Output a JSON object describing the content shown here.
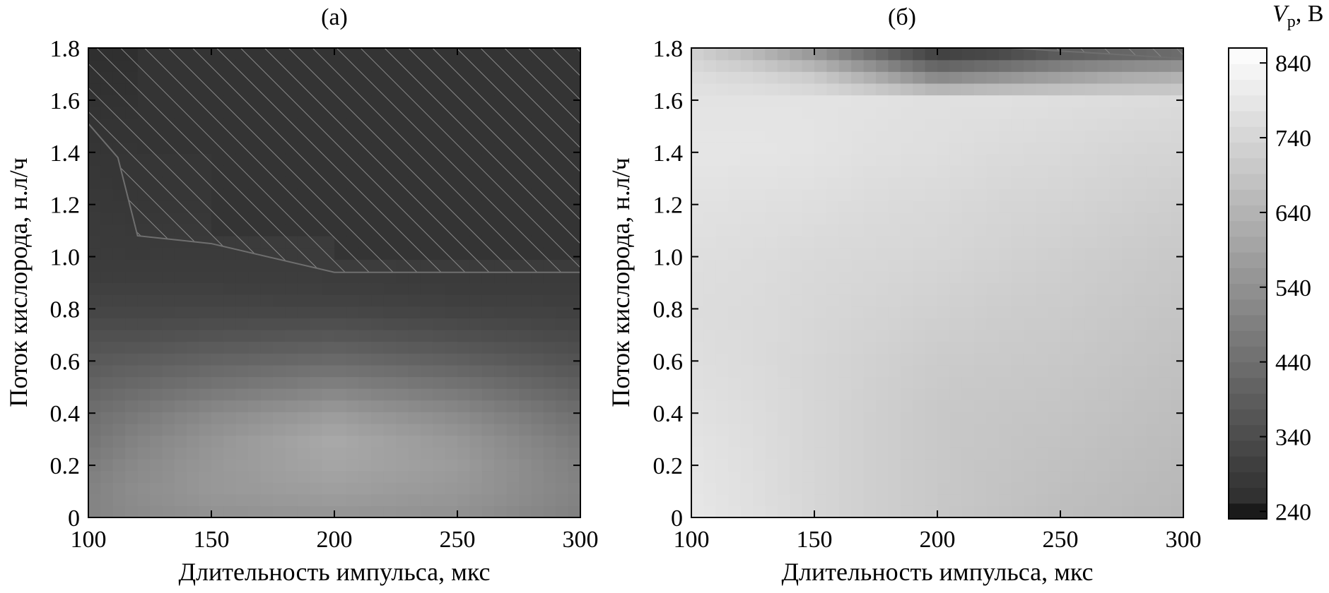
{
  "chart_data": [
    {
      "type": "heatmap",
      "panel_label": "(а)",
      "xlabel": "Длительность импульса, мкс",
      "ylabel": "Поток кислорода, н.л/ч",
      "xlim": [
        100,
        300
      ],
      "ylim": [
        0,
        1.8
      ],
      "x_ticks": [
        "100",
        "150",
        "200",
        "250",
        "300"
      ],
      "y_ticks": [
        "0",
        "0.2",
        "0.4",
        "0.6",
        "0.8",
        "1.0",
        "1.2",
        "1.4",
        "1.6",
        "1.8"
      ],
      "x": [
        100,
        120,
        150,
        200,
        250,
        300
      ],
      "y": [
        0,
        0.1,
        0.2,
        0.3,
        0.4,
        0.5,
        0.6,
        0.7,
        0.8,
        0.9,
        1.0,
        1.1,
        1.2,
        1.3,
        1.4,
        1.5
      ],
      "z": [
        [
          500,
          520,
          540,
          550,
          540,
          490
        ],
        [
          500,
          530,
          560,
          580,
          560,
          500
        ],
        [
          480,
          520,
          560,
          600,
          570,
          490
        ],
        [
          460,
          500,
          550,
          610,
          560,
          470
        ],
        [
          440,
          470,
          520,
          570,
          520,
          440
        ],
        [
          410,
          430,
          460,
          500,
          460,
          400
        ],
        [
          380,
          390,
          410,
          430,
          400,
          360
        ],
        [
          350,
          350,
          360,
          370,
          350,
          330
        ],
        [
          320,
          320,
          320,
          320,
          310,
          305
        ],
        [
          300,
          300,
          300,
          295,
          290,
          290
        ],
        [
          290,
          290,
          290,
          null,
          null,
          null
        ],
        [
          290,
          285,
          null,
          null,
          null,
          null
        ],
        [
          285,
          280,
          null,
          null,
          null,
          null
        ],
        [
          280,
          275,
          null,
          null,
          null,
          null
        ],
        [
          275,
          null,
          null,
          null,
          null,
          null
        ],
        [
          270,
          null,
          null,
          null,
          null,
          null
        ]
      ],
      "hatched_region_boundary": {
        "x": [
          100,
          112,
          120,
          150,
          200,
          300
        ],
        "y": [
          1.51,
          1.38,
          1.08,
          1.05,
          0.94,
          0.94
        ]
      }
    },
    {
      "type": "heatmap",
      "panel_label": "(б)",
      "xlabel": "Длительность импульса, мкс",
      "ylabel": "Поток кислорода, н.л/ч",
      "xlim": [
        100,
        300
      ],
      "ylim": [
        0,
        1.8
      ],
      "x_ticks": [
        "100",
        "150",
        "200",
        "250",
        "300"
      ],
      "y_ticks": [
        "0",
        "0.2",
        "0.4",
        "0.6",
        "0.8",
        "1.0",
        "1.2",
        "1.4",
        "1.6",
        "1.8"
      ],
      "x": [
        100,
        125,
        150,
        175,
        200,
        225,
        250,
        275,
        300
      ],
      "y": [
        0,
        0.2,
        0.4,
        0.6,
        0.8,
        1.0,
        1.2,
        1.4,
        1.6,
        1.7,
        1.8
      ],
      "z": [
        [
          790,
          770,
          740,
          720,
          700,
          685,
          670,
          660,
          650
        ],
        [
          785,
          765,
          740,
          720,
          700,
          690,
          680,
          670,
          660
        ],
        [
          775,
          760,
          740,
          720,
          700,
          695,
          690,
          680,
          670
        ],
        [
          765,
          755,
          740,
          725,
          710,
          705,
          700,
          690,
          680
        ],
        [
          760,
          755,
          745,
          735,
          725,
          715,
          710,
          700,
          690
        ],
        [
          765,
          760,
          750,
          745,
          740,
          730,
          720,
          710,
          700
        ],
        [
          775,
          770,
          765,
          755,
          750,
          740,
          735,
          725,
          715
        ],
        [
          785,
          785,
          780,
          770,
          765,
          755,
          750,
          740,
          735
        ],
        [
          780,
          780,
          780,
          775,
          770,
          770,
          765,
          760,
          755
        ],
        [
          760,
          740,
          700,
          600,
          480,
          520,
          560,
          600,
          620
        ],
        [
          720,
          640,
          520,
          380,
          260,
          280,
          340,
          360,
          380
        ]
      ],
      "hatched_region_boundary": {
        "x": [
          230,
          300
        ],
        "y": [
          1.8,
          1.76
        ]
      }
    }
  ],
  "colorbar": {
    "label_var": "V",
    "label_sub": "р",
    "label_unit": ", В",
    "min": 230,
    "max": 860,
    "ticks": [
      {
        "value": 840,
        "text": "840"
      },
      {
        "value": 740,
        "text": "740"
      },
      {
        "value": 640,
        "text": "640"
      },
      {
        "value": 540,
        "text": "540"
      },
      {
        "value": 440,
        "text": "440"
      },
      {
        "value": 340,
        "text": "340"
      },
      {
        "value": 240,
        "text": "240"
      }
    ],
    "low_color": "#1a1a1a",
    "high_color": "#ffffff"
  }
}
